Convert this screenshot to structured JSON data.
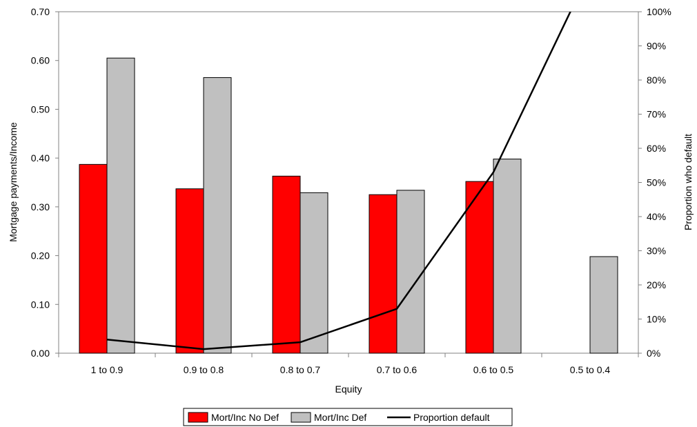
{
  "chart_data": {
    "type": "bar",
    "categories": [
      "1 to 0.9",
      "0.9 to 0.8",
      "0.8 to 0.7",
      "0.7 to 0.6",
      "0.6 to 0.5",
      "0.5 to 0.4"
    ],
    "series": [
      {
        "name": "Mort/Inc No Def",
        "type": "bar",
        "axis": "left",
        "color": "#ff0000",
        "values": [
          0.387,
          0.337,
          0.363,
          0.325,
          0.352,
          null
        ]
      },
      {
        "name": "Mort/Inc Def",
        "type": "bar",
        "axis": "left",
        "color": "#c0c0c0",
        "values": [
          0.605,
          0.565,
          0.329,
          0.334,
          0.398,
          0.198
        ]
      },
      {
        "name": "Proportion default",
        "type": "line",
        "axis": "right",
        "color": "#000000",
        "values": [
          0.04,
          0.012,
          0.032,
          0.13,
          0.53,
          1.12
        ]
      }
    ],
    "xlabel": "Equity",
    "ylabel": "Mortgage payments/Income",
    "y2label": "Proportion who default",
    "ylim": [
      0,
      0.7
    ],
    "y2lim": [
      0,
      1
    ],
    "yticks": [
      "0.00",
      "0.10",
      "0.20",
      "0.30",
      "0.40",
      "0.50",
      "0.60",
      "0.70"
    ],
    "y2ticks": [
      "0%",
      "10%",
      "20%",
      "30%",
      "40%",
      "50%",
      "60%",
      "70%",
      "80%",
      "90%",
      "100%"
    ],
    "legend_position": "bottom",
    "grid": false
  }
}
